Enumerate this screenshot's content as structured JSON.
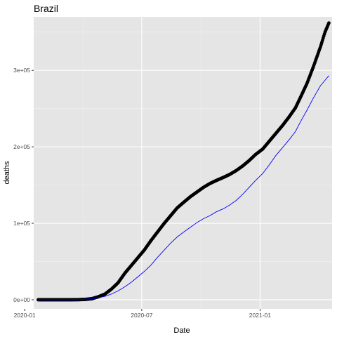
{
  "chart_data": {
    "type": "line",
    "title": "Brazil",
    "xlabel": "Date",
    "ylabel": "deaths",
    "x_axis": {
      "type": "date",
      "range": [
        "2020-01-15",
        "2021-04-23"
      ],
      "ticks": [
        {
          "value": "2020-01-01",
          "label": "2020-01"
        },
        {
          "value": "2020-07-01",
          "label": "2020-07"
        },
        {
          "value": "2021-01-01",
          "label": "2021-01"
        }
      ]
    },
    "y_axis": {
      "range": [
        -12000,
        370000
      ],
      "ticks": [
        {
          "value": 0,
          "label": "0e+00"
        },
        {
          "value": 100000,
          "label": "1e+05"
        },
        {
          "value": 200000,
          "label": "2e+05"
        },
        {
          "value": 300000,
          "label": "3e+05"
        }
      ]
    },
    "grid": true,
    "legend": "none",
    "colors": {
      "panel_background": "#e5e5e5",
      "grid_major": "#ffffff",
      "grid_minor": "#f2f2f2",
      "points": "#000000",
      "line": "#0000ff"
    },
    "series": [
      {
        "style": "points",
        "color": "#000000",
        "points": [
          [
            "2020-01-22",
            0
          ],
          [
            "2020-02-15",
            0
          ],
          [
            "2020-03-10",
            0
          ],
          [
            "2020-03-25",
            100
          ],
          [
            "2020-04-05",
            500
          ],
          [
            "2020-04-15",
            1500
          ],
          [
            "2020-04-25",
            4000
          ],
          [
            "2020-05-05",
            7500
          ],
          [
            "2020-05-15",
            14000
          ],
          [
            "2020-05-25",
            22000
          ],
          [
            "2020-06-05",
            35000
          ],
          [
            "2020-06-15",
            45000
          ],
          [
            "2020-06-25",
            55000
          ],
          [
            "2020-07-05",
            65000
          ],
          [
            "2020-07-15",
            77000
          ],
          [
            "2020-07-25",
            88000
          ],
          [
            "2020-08-05",
            100000
          ],
          [
            "2020-08-15",
            110000
          ],
          [
            "2020-08-25",
            120000
          ],
          [
            "2020-09-05",
            128000
          ],
          [
            "2020-09-15",
            135000
          ],
          [
            "2020-09-25",
            141000
          ],
          [
            "2020-10-05",
            147000
          ],
          [
            "2020-10-15",
            152000
          ],
          [
            "2020-10-25",
            156000
          ],
          [
            "2020-11-05",
            160000
          ],
          [
            "2020-11-15",
            164000
          ],
          [
            "2020-11-25",
            169000
          ],
          [
            "2020-12-05",
            175000
          ],
          [
            "2020-12-15",
            182000
          ],
          [
            "2020-12-25",
            190000
          ],
          [
            "2021-01-05",
            197000
          ],
          [
            "2021-01-15",
            207000
          ],
          [
            "2021-01-25",
            217000
          ],
          [
            "2021-02-05",
            228000
          ],
          [
            "2021-02-15",
            239000
          ],
          [
            "2021-02-25",
            251000
          ],
          [
            "2021-03-05",
            265000
          ],
          [
            "2021-03-15",
            283000
          ],
          [
            "2021-03-25",
            305000
          ],
          [
            "2021-04-05",
            331000
          ],
          [
            "2021-04-12",
            350000
          ],
          [
            "2021-04-18",
            362000
          ]
        ]
      },
      {
        "style": "line",
        "color": "#0000ff",
        "points": [
          [
            "2020-01-22",
            0
          ],
          [
            "2020-03-25",
            0
          ],
          [
            "2020-04-15",
            1500
          ],
          [
            "2020-04-25",
            2800
          ],
          [
            "2020-05-05",
            4500
          ],
          [
            "2020-05-15",
            7500
          ],
          [
            "2020-05-25",
            11500
          ],
          [
            "2020-06-05",
            17000
          ],
          [
            "2020-06-15",
            23000
          ],
          [
            "2020-06-25",
            30000
          ],
          [
            "2020-07-05",
            37000
          ],
          [
            "2020-07-15",
            45000
          ],
          [
            "2020-07-25",
            55000
          ],
          [
            "2020-08-05",
            65000
          ],
          [
            "2020-08-15",
            74000
          ],
          [
            "2020-08-25",
            82000
          ],
          [
            "2020-09-05",
            89000
          ],
          [
            "2020-09-15",
            95000
          ],
          [
            "2020-09-25",
            101000
          ],
          [
            "2020-10-05",
            106000
          ],
          [
            "2020-10-15",
            110000
          ],
          [
            "2020-10-25",
            115000
          ],
          [
            "2020-11-05",
            119000
          ],
          [
            "2020-11-15",
            124000
          ],
          [
            "2020-11-25",
            130000
          ],
          [
            "2020-12-05",
            138000
          ],
          [
            "2020-12-15",
            147000
          ],
          [
            "2020-12-25",
            156000
          ],
          [
            "2021-01-05",
            165000
          ],
          [
            "2021-01-15",
            176000
          ],
          [
            "2021-01-25",
            188000
          ],
          [
            "2021-02-05",
            199000
          ],
          [
            "2021-02-15",
            209000
          ],
          [
            "2021-02-25",
            220000
          ],
          [
            "2021-03-05",
            233000
          ],
          [
            "2021-03-15",
            248000
          ],
          [
            "2021-03-25",
            264000
          ],
          [
            "2021-04-05",
            280000
          ],
          [
            "2021-04-12",
            287000
          ],
          [
            "2021-04-18",
            293000
          ]
        ]
      }
    ]
  }
}
